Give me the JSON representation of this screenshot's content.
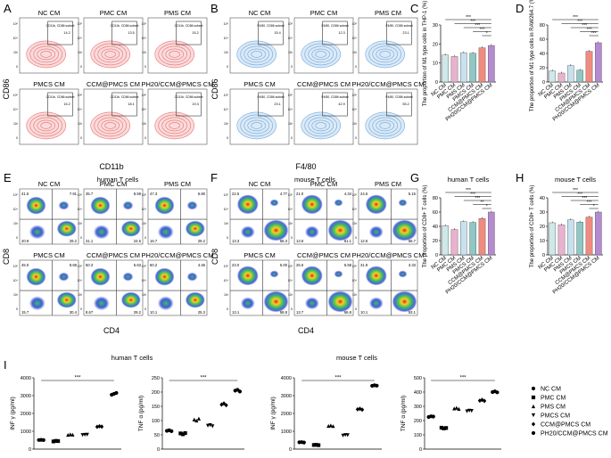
{
  "panels": {
    "A": {
      "letter": "A",
      "xlabel": "CD11b",
      "ylabel": "CD86",
      "gate_label": "CD11b, CD86 subset",
      "color": "#e8716f",
      "plots": [
        {
          "title": "NC CM",
          "value": "14.2"
        },
        {
          "title": "PMC CM",
          "value": "13.5"
        },
        {
          "title": "PMS CM",
          "value": "15.2"
        },
        {
          "title": "PMCS CM",
          "value": "16.2"
        },
        {
          "title": "CCM@PMCS CM",
          "value": "18.1"
        },
        {
          "title": "PH20/CCM@PMCS CM",
          "value": "19.3"
        }
      ]
    },
    "B": {
      "letter": "B",
      "xlabel": "F4/80",
      "ylabel": "CD86",
      "gate_label": "F4/80, CD86 subset",
      "color": "#6fa8dc",
      "plots": [
        {
          "title": "NC CM",
          "value": "15.4"
        },
        {
          "title": "PMC CM",
          "value": "12.3"
        },
        {
          "title": "PMS CM",
          "value": "23.1"
        },
        {
          "title": "PMCS CM",
          "value": "23.1"
        },
        {
          "title": "CCM@PMCS CM",
          "value": "42.9"
        },
        {
          "title": "PH20/CCM@PMCS CM",
          "value": "55.2"
        }
      ]
    },
    "E": {
      "letter": "E",
      "subtitle": "human T cells",
      "xlabel": "CD4",
      "ylabel": "CD8",
      "plots": [
        {
          "title": "NC CM",
          "q": [
            "41.5",
            "7.91",
            "20.9",
            "29.2"
          ]
        },
        {
          "title": "PMC CM",
          "q": [
            "35.7",
            "8.59",
            "31.1",
            "24.5"
          ]
        },
        {
          "title": "PMS CM",
          "q": [
            "47.3",
            "6.80",
            "16.7",
            "29.2"
          ]
        },
        {
          "title": "PMCS CM",
          "q": [
            "45.0",
            "8.68",
            "15.7",
            "30.4"
          ]
        },
        {
          "title": "CCM@PMCS CM",
          "q": [
            "50.3",
            "5.63",
            "8.67",
            "29.2"
          ]
        },
        {
          "title": "PH20/CCM@PMCS CM",
          "q": [
            "60.2",
            "4.46",
            "10.1",
            "25.3"
          ]
        }
      ]
    },
    "F": {
      "letter": "F",
      "subtitle": "mouse T cells",
      "xlabel": "CD4",
      "ylabel": "CD8",
      "plots": [
        {
          "title": "NC CM",
          "q": [
            "22.5",
            "4.77",
            "13.3",
            "56.3"
          ]
        },
        {
          "title": "PMC CM",
          "q": [
            "21.0",
            "4.34",
            "13.6",
            "61.1"
          ]
        },
        {
          "title": "PMS CM",
          "q": [
            "24.6",
            "5.15",
            "12.6",
            "56.7"
          ]
        },
        {
          "title": "PMCS CM",
          "q": [
            "23.0",
            "5.00",
            "13.1",
            "58.8"
          ]
        },
        {
          "title": "CCM@PMCS CM",
          "q": [
            "26.6",
            "5.58",
            "13.7",
            "56.8"
          ]
        },
        {
          "title": "PH20/CCM@PMCS CM",
          "q": [
            "31.9",
            "3.33",
            "10.1",
            "53.1"
          ]
        }
      ]
    },
    "I": {
      "letter": "I",
      "human_label": "human T cells",
      "mouse_label": "mouse T cells"
    }
  },
  "groups": [
    "NC CM",
    "PMC CM",
    "PMS CM",
    "PMCS CM",
    "CCM@PMCS CM",
    "PH20/CCM@PMCS CM"
  ],
  "bar_colors": [
    "#cfe8ea",
    "#e9b3cf",
    "#c7e1ef",
    "#8fc7c4",
    "#f08b80",
    "#b58ad0"
  ],
  "legend_symbols": [
    "circle",
    "square",
    "triangle-up",
    "triangle-down",
    "diamond",
    "circle"
  ],
  "sig_label": "***",
  "chart_data": [
    {
      "id": "C",
      "type": "bar",
      "letter": "C",
      "title": "",
      "ylabel": "The proportion of M1 type cells in THP-1 (%)",
      "categories": [
        "NC CM",
        "PMC CM",
        "PMS CM",
        "PMCS CM",
        "CCM@PMCS CM",
        "PH20/CCM@PMCS CM"
      ],
      "values": [
        14.2,
        13.4,
        15.4,
        15.1,
        18.0,
        19.2
      ],
      "ylim": [
        0,
        30
      ],
      "yticks": [
        "0",
        "10",
        "20",
        "30"
      ],
      "sig": [
        "***",
        "***",
        "***",
        "***",
        "*"
      ]
    },
    {
      "id": "D",
      "type": "bar",
      "letter": "D",
      "title": "",
      "ylabel": "The proportion of M1 type cells in RAW264.7 (%)",
      "categories": [
        "NC CM",
        "PMC CM",
        "PMS CM",
        "PMCS CM",
        "CCM@PMCS CM",
        "PH20/CCM@PMCS CM"
      ],
      "values": [
        15.5,
        12.5,
        23.0,
        16.5,
        43.0,
        55.0
      ],
      "ylim": [
        0,
        80
      ],
      "yticks": [
        "0",
        "20",
        "40",
        "60",
        "80"
      ],
      "sig": [
        "***",
        "***",
        "***",
        "***",
        "***"
      ]
    },
    {
      "id": "G",
      "type": "bar",
      "letter": "G",
      "title": "human T cells",
      "ylabel": "The proportion of CD8+ T cells (%)",
      "categories": [
        "NC CM",
        "PMC CM",
        "PMS CM",
        "PMCS CM",
        "CCM@PMCS CM",
        "PH20/CCM@PMCS CM"
      ],
      "values": [
        41.0,
        35.5,
        46.5,
        45.5,
        51.0,
        60.0
      ],
      "ylim": [
        0,
        80
      ],
      "yticks": [
        "0",
        "20",
        "40",
        "60",
        "80"
      ],
      "sig": [
        "***",
        "***",
        "***",
        "**",
        "*"
      ]
    },
    {
      "id": "H",
      "type": "bar",
      "letter": "H",
      "title": "mouse T cells",
      "ylabel": "The proportion of CD8+ T cells (%)",
      "categories": [
        "NC CM",
        "PMC CM",
        "PMS CM",
        "PMCS CM",
        "CCM@PMCS CM",
        "PH20/CCM@PMCS CM"
      ],
      "values": [
        22.5,
        21.0,
        24.5,
        23.0,
        26.5,
        30.0
      ],
      "ylim": [
        0,
        40
      ],
      "yticks": [
        "0",
        "10",
        "20",
        "30",
        "40"
      ],
      "sig": [
        "***",
        "***",
        "***",
        "***",
        "*"
      ]
    },
    {
      "id": "I1",
      "type": "scatter",
      "title": "human T cells",
      "ylabel": "INF γ (pg/ml)",
      "groups": [
        "NC CM",
        "PMC CM",
        "PMS CM",
        "PMCS CM",
        "CCM@PMCS CM",
        "PH20/CCM@PMCS CM"
      ],
      "values": [
        [
          510,
          520,
          505
        ],
        [
          430,
          460,
          450
        ],
        [
          800,
          830,
          810
        ],
        [
          790,
          800,
          810
        ],
        [
          1250,
          1280,
          1260
        ],
        [
          3050,
          3100,
          3150
        ]
      ],
      "ylim": [
        0,
        4000
      ],
      "yticks": [
        "0",
        "1000",
        "2000",
        "3000",
        "4000"
      ],
      "sig": "***"
    },
    {
      "id": "I2",
      "type": "scatter",
      "title": "",
      "ylabel": "TNF α (pg/ml)",
      "groups": [
        "NC CM",
        "PMC CM",
        "PMS CM",
        "PMCS CM",
        "CCM@PMCS CM",
        "PH20/CCM@PMCS CM"
      ],
      "values": [
        [
          64,
          66,
          63
        ],
        [
          55,
          52,
          56
        ],
        [
          104,
          100,
          107
        ],
        [
          82,
          84,
          80
        ],
        [
          156,
          160,
          154
        ],
        [
          205,
          208,
          202
        ]
      ],
      "ylim": [
        0,
        250
      ],
      "yticks": [
        "0",
        "50",
        "100",
        "150",
        "200",
        "250"
      ],
      "sig": "***"
    },
    {
      "id": "I3",
      "type": "scatter",
      "title": "mouse T cells",
      "ylabel": "INF γ (pg/ml)",
      "groups": [
        "NC CM",
        "PMC CM",
        "PMS CM",
        "PMCS CM",
        "CCM@PMCS CM",
        "PH20/CCM@PMCS CM"
      ],
      "values": [
        [
          380,
          390,
          370
        ],
        [
          230,
          240,
          220
        ],
        [
          1300,
          1330,
          1290
        ],
        [
          760,
          790,
          780
        ],
        [
          2230,
          2260,
          2210
        ],
        [
          3550,
          3580,
          3560
        ]
      ],
      "ylim": [
        0,
        4000
      ],
      "yticks": [
        "0",
        "1000",
        "2000",
        "3000",
        "4000"
      ],
      "sig": "***"
    },
    {
      "id": "I4",
      "type": "scatter",
      "title": "",
      "ylabel": "TNF α (pg/ml)",
      "groups": [
        "NC CM",
        "PMC CM",
        "PMS CM",
        "PMCS CM",
        "CCM@PMCS CM",
        "PH20/CCM@PMCS CM"
      ],
      "values": [
        [
          225,
          230,
          228
        ],
        [
          150,
          145,
          148
        ],
        [
          285,
          290,
          282
        ],
        [
          265,
          270,
          268
        ],
        [
          340,
          345,
          338
        ],
        [
          400,
          405,
          398
        ]
      ],
      "ylim": [
        0,
        500
      ],
      "yticks": [
        "0",
        "100",
        "200",
        "300",
        "400",
        "500"
      ],
      "sig": "***"
    }
  ]
}
